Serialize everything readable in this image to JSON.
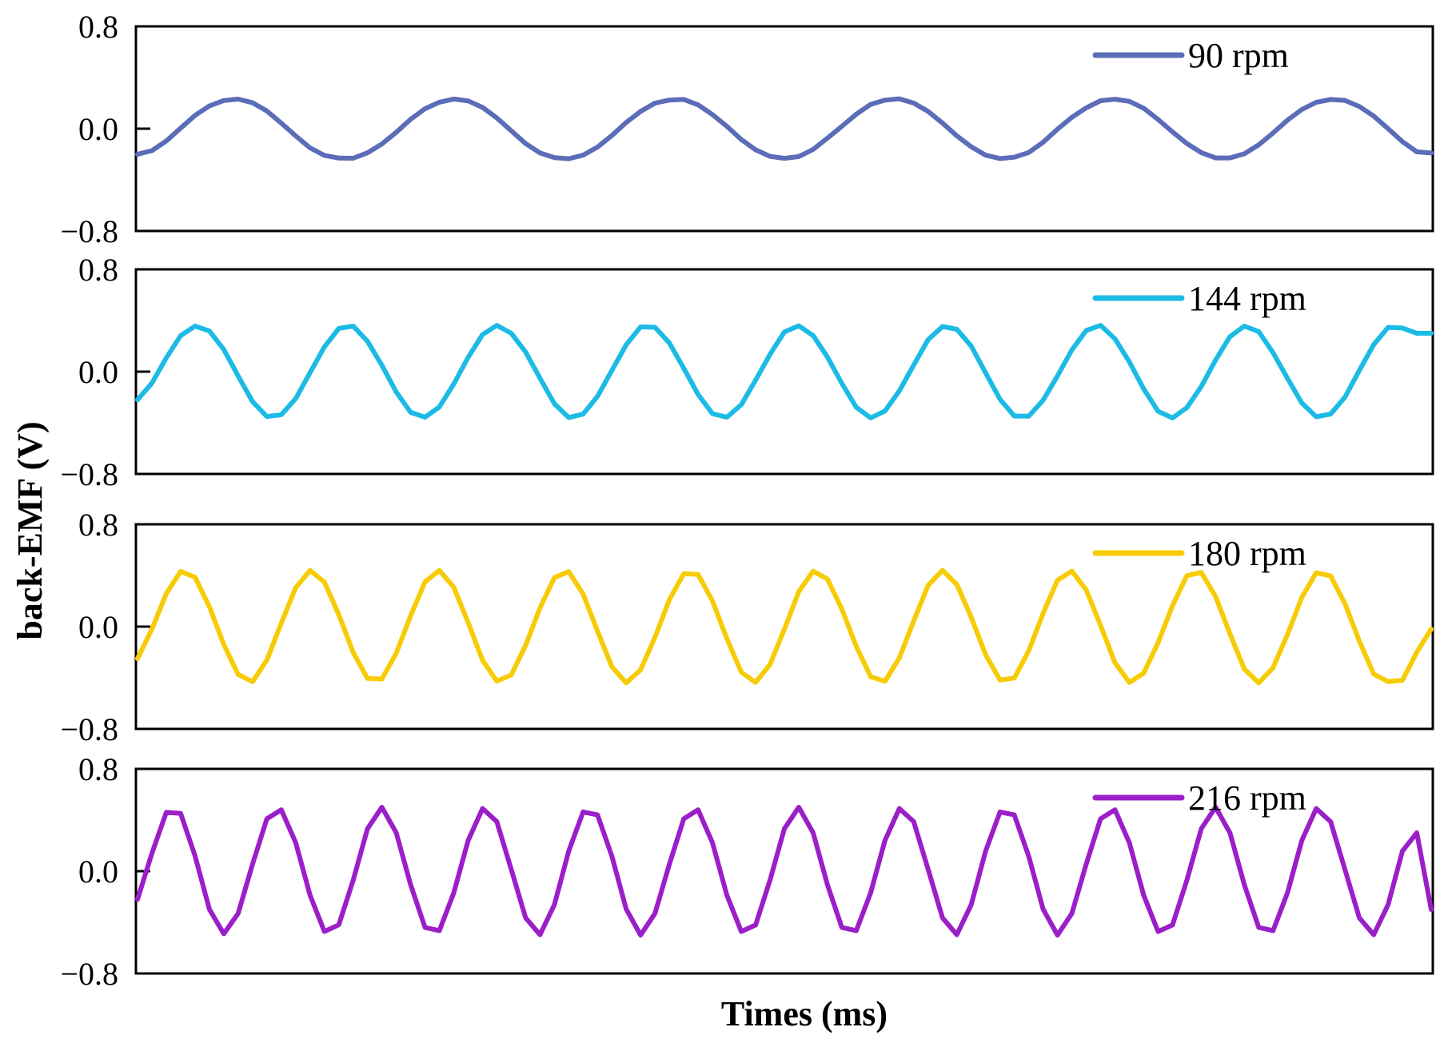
{
  "chart_data": {
    "type": "line",
    "layout": "stacked-panels",
    "xlabel": "Times (ms)",
    "ylabel": "back-EMF  (V)",
    "shared_x": true,
    "x_tick_labels_shown": false,
    "grid": false,
    "legend_position": "top-right",
    "panels": [
      {
        "name": "90 rpm",
        "color": "#5b6cb8",
        "ylim": [
          -0.8,
          0.8
        ],
        "yticks": [
          "0.8",
          "0.0",
          "−0.8"
        ],
        "x": [
          0,
          0.075,
          0.15,
          0.225,
          0.3,
          0.375,
          0.45,
          0.525,
          0.6,
          0.675,
          0.75,
          0.825,
          0.9,
          0.975,
          1.05,
          1.125,
          1.2,
          1.275,
          1.35,
          1.425,
          1.5,
          1.575,
          1.65,
          1.725,
          1.8,
          1.875,
          1.95,
          2.025,
          2.1,
          2.175,
          2.25,
          2.325,
          2.4,
          2.475,
          2.55,
          2.625,
          2.7,
          2.775,
          2.85,
          2.925,
          3.0,
          3.075,
          3.15,
          3.225,
          3.3,
          3.375,
          3.45,
          3.525,
          3.6,
          3.675,
          3.75,
          3.825,
          3.9,
          3.975,
          4.05,
          4.125,
          4.2,
          4.275,
          4.35,
          4.425,
          4.5,
          4.575,
          4.65,
          4.725,
          4.8,
          4.875,
          4.95,
          5.025,
          5.1,
          5.175,
          5.25,
          5.325,
          5.4,
          5.475,
          5.55,
          5.625,
          5.7,
          5.775,
          5.85,
          5.925,
          6.0,
          6.075,
          6.15,
          6.225,
          6.3,
          6.375,
          6.45,
          6.525,
          6.6,
          6.675,
          6.75
        ],
        "values": [
          -0.2,
          -0.172,
          -0.096,
          0.004,
          0.104,
          0.178,
          0.22,
          0.231,
          0.203,
          0.138,
          0.044,
          -0.056,
          -0.15,
          -0.209,
          -0.23,
          -0.231,
          -0.189,
          -0.12,
          -0.028,
          0.074,
          0.156,
          0.207,
          0.232,
          0.217,
          0.166,
          0.084,
          -0.016,
          -0.116,
          -0.19,
          -0.226,
          -0.235,
          -0.207,
          -0.144,
          -0.053,
          0.049,
          0.135,
          0.2,
          0.224,
          0.229,
          0.186,
          0.11,
          0.018,
          -0.085,
          -0.165,
          -0.216,
          -0.232,
          -0.218,
          -0.162,
          -0.074,
          0.018,
          0.113,
          0.19,
          0.223,
          0.234,
          0.2,
          0.135,
          0.044,
          -0.056,
          -0.141,
          -0.207,
          -0.234,
          -0.223,
          -0.186,
          -0.106,
          -0.004,
          0.089,
          0.163,
          0.219,
          0.23,
          0.214,
          0.16,
          0.072,
          -0.025,
          -0.116,
          -0.187,
          -0.229,
          -0.229,
          -0.196,
          -0.126,
          -0.034,
          0.066,
          0.15,
          0.206,
          0.228,
          0.221,
          0.173,
          0.098,
          0.0,
          -0.101,
          -0.181,
          -0.19
        ]
      },
      {
        "name": "144 rpm",
        "color": "#1cbbe6",
        "ylim": [
          -0.8,
          0.8
        ],
        "yticks": [
          "0.8",
          "0.0",
          "−0.8"
        ],
        "x": [
          0,
          0.075,
          0.15,
          0.225,
          0.3,
          0.375,
          0.45,
          0.525,
          0.6,
          0.675,
          0.75,
          0.825,
          0.9,
          0.975,
          1.05,
          1.125,
          1.2,
          1.275,
          1.35,
          1.425,
          1.5,
          1.575,
          1.65,
          1.725,
          1.8,
          1.875,
          1.95,
          2.025,
          2.1,
          2.175,
          2.25,
          2.325,
          2.4,
          2.475,
          2.55,
          2.625,
          2.7,
          2.775,
          2.85,
          2.925,
          3.0,
          3.075,
          3.15,
          3.225,
          3.3,
          3.375,
          3.45,
          3.525,
          3.6,
          3.675,
          3.75,
          3.825,
          3.9,
          3.975,
          4.05,
          4.125,
          4.2,
          4.275,
          4.35,
          4.425,
          4.5,
          4.575,
          4.65,
          4.725,
          4.8,
          4.875,
          4.95,
          5.025,
          5.1,
          5.175,
          5.25,
          5.325,
          5.4,
          5.475,
          5.55,
          5.625,
          5.7,
          5.775,
          5.85,
          5.925,
          6.0,
          6.075,
          6.15,
          6.225,
          6.3,
          6.375,
          6.45,
          6.525,
          6.6,
          6.675,
          6.75
        ],
        "values": [
          -0.22,
          -0.09,
          0.108,
          0.281,
          0.356,
          0.318,
          0.173,
          -0.033,
          -0.234,
          -0.351,
          -0.337,
          -0.211,
          -0.009,
          0.193,
          0.338,
          0.356,
          0.238,
          0.05,
          -0.16,
          -0.318,
          -0.356,
          -0.276,
          -0.097,
          0.112,
          0.29,
          0.362,
          0.3,
          0.154,
          -0.052,
          -0.251,
          -0.359,
          -0.332,
          -0.193,
          0.01,
          0.21,
          0.35,
          0.347,
          0.224,
          0.026,
          -0.178,
          -0.329,
          -0.356,
          -0.259,
          -0.067,
          0.135,
          0.31,
          0.359,
          0.282,
          0.114,
          -0.092,
          -0.278,
          -0.362,
          -0.308,
          -0.15,
          0.052,
          0.25,
          0.353,
          0.331,
          0.2,
          -0.01,
          -0.216,
          -0.347,
          -0.348,
          -0.224,
          -0.033,
          0.17,
          0.322,
          0.362,
          0.256,
          0.076,
          -0.135,
          -0.31,
          -0.362,
          -0.282,
          -0.116,
          0.09,
          0.274,
          0.356,
          0.313,
          0.148,
          -0.052,
          -0.245,
          -0.353,
          -0.331,
          -0.2,
          0.01,
          0.211,
          0.346,
          0.341,
          0.3,
          0.3
        ]
      },
      {
        "name": "180 rpm",
        "color": "#f7cc06",
        "ylim": [
          -0.8,
          0.8
        ],
        "yticks": [
          "0.8",
          "0.0",
          "−0.8"
        ],
        "x": [
          0,
          0.075,
          0.15,
          0.225,
          0.3,
          0.375,
          0.45,
          0.525,
          0.6,
          0.675,
          0.75,
          0.825,
          0.9,
          0.975,
          1.05,
          1.125,
          1.2,
          1.275,
          1.35,
          1.425,
          1.5,
          1.575,
          1.65,
          1.725,
          1.8,
          1.875,
          1.95,
          2.025,
          2.1,
          2.175,
          2.25,
          2.325,
          2.4,
          2.475,
          2.55,
          2.625,
          2.7,
          2.775,
          2.85,
          2.925,
          3.0,
          3.075,
          3.15,
          3.225,
          3.3,
          3.375,
          3.45,
          3.525,
          3.6,
          3.675,
          3.75,
          3.825,
          3.9,
          3.975,
          4.05,
          4.125,
          4.2,
          4.275,
          4.35,
          4.425,
          4.5,
          4.575,
          4.65,
          4.725,
          4.8,
          4.875,
          4.95,
          5.025,
          5.1,
          5.175,
          5.25,
          5.325,
          5.4,
          5.475,
          5.55,
          5.625,
          5.7,
          5.775,
          5.85,
          5.925,
          6.0,
          6.075,
          6.15,
          6.225,
          6.3,
          6.375,
          6.45,
          6.525,
          6.6,
          6.675,
          6.75
        ],
        "values": [
          -0.25,
          -0.02,
          0.259,
          0.431,
          0.386,
          0.155,
          -0.14,
          -0.374,
          -0.431,
          -0.262,
          0.027,
          0.304,
          0.44,
          0.349,
          0.094,
          -0.202,
          -0.405,
          -0.41,
          -0.208,
          0.085,
          0.35,
          0.44,
          0.308,
          0.031,
          -0.263,
          -0.427,
          -0.378,
          -0.146,
          0.146,
          0.384,
          0.43,
          0.254,
          -0.035,
          -0.314,
          -0.44,
          -0.338,
          -0.083,
          0.211,
          0.414,
          0.408,
          0.2,
          -0.094,
          -0.356,
          -0.437,
          -0.296,
          -0.02,
          0.273,
          0.434,
          0.371,
          0.136,
          -0.154,
          -0.391,
          -0.428,
          -0.245,
          0.045,
          0.323,
          0.44,
          0.33,
          0.073,
          -0.22,
          -0.418,
          -0.402,
          -0.19,
          0.104,
          0.363,
          0.434,
          0.287,
          0.009,
          -0.283,
          -0.437,
          -0.364,
          -0.126,
          0.164,
          0.398,
          0.424,
          0.235,
          -0.056,
          -0.332,
          -0.44,
          -0.321,
          -0.062,
          0.229,
          0.421,
          0.396,
          0.18,
          -0.114,
          -0.371,
          -0.43,
          -0.42,
          -0.2,
          -0.02
        ]
      },
      {
        "name": "216 rpm",
        "color": "#9b1fc8",
        "ylim": [
          -0.8,
          0.8
        ],
        "yticks": [
          "0.8",
          "0.0",
          "−0.8"
        ],
        "x": [
          0,
          0.075,
          0.15,
          0.225,
          0.3,
          0.375,
          0.45,
          0.525,
          0.6,
          0.675,
          0.75,
          0.825,
          0.9,
          0.975,
          1.05,
          1.125,
          1.2,
          1.275,
          1.35,
          1.425,
          1.5,
          1.575,
          1.65,
          1.725,
          1.8,
          1.875,
          1.95,
          2.025,
          2.1,
          2.175,
          2.25,
          2.325,
          2.4,
          2.475,
          2.55,
          2.625,
          2.7,
          2.775,
          2.85,
          2.925,
          3.0,
          3.075,
          3.15,
          3.225,
          3.3,
          3.375,
          3.45,
          3.525,
          3.6,
          3.675,
          3.75,
          3.825,
          3.9,
          3.975,
          4.05,
          4.125,
          4.2,
          4.275,
          4.35,
          4.425,
          4.5,
          4.575,
          4.65,
          4.725,
          4.8,
          4.875,
          4.95,
          5.025,
          5.1,
          5.175,
          5.25,
          5.325,
          5.4,
          5.475,
          5.55,
          5.625,
          5.7,
          5.775,
          5.85,
          5.925,
          6.0,
          6.075,
          6.15,
          6.225,
          6.3,
          6.375,
          6.45,
          6.525,
          6.6,
          6.675,
          6.75
        ],
        "values": [
          -0.22,
          0.14,
          0.46,
          0.452,
          0.12,
          -0.298,
          -0.49,
          -0.331,
          0.054,
          0.41,
          0.48,
          0.224,
          -0.186,
          -0.472,
          -0.42,
          -0.071,
          0.332,
          0.5,
          0.3,
          -0.107,
          -0.44,
          -0.465,
          -0.17,
          0.24,
          0.49,
          0.387,
          0.014,
          -0.365,
          -0.497,
          -0.262,
          0.157,
          0.463,
          0.44,
          0.117,
          -0.297,
          -0.5,
          -0.33,
          0.055,
          0.41,
          0.48,
          0.222,
          -0.188,
          -0.472,
          -0.421,
          -0.071,
          0.332,
          0.5,
          0.3,
          -0.107,
          -0.44,
          -0.465,
          -0.17,
          0.24,
          0.49,
          0.387,
          0.014,
          -0.365,
          -0.497,
          -0.262,
          0.157,
          0.463,
          0.44,
          0.117,
          -0.297,
          -0.5,
          -0.33,
          0.055,
          0.41,
          0.48,
          0.222,
          -0.188,
          -0.472,
          -0.421,
          -0.071,
          0.332,
          0.5,
          0.3,
          -0.107,
          -0.44,
          -0.465,
          -0.17,
          0.24,
          0.49,
          0.387,
          0.014,
          -0.365,
          -0.497,
          -0.262,
          0.157,
          0.3,
          -0.3
        ]
      }
    ]
  }
}
